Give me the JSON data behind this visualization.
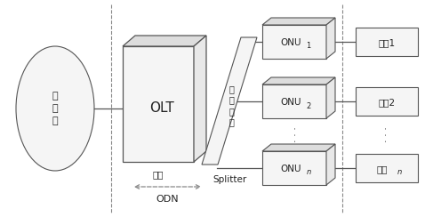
{
  "bg_color": "#ffffff",
  "line_color": "#555555",
  "box_fill": "#f5f5f5",
  "box_top": "#dddddd",
  "box_right": "#e8e8e8",
  "box_edge": "#555555",
  "dashed_color": "#888888",
  "text_color": "#222222",
  "figsize": [
    4.96,
    2.44
  ],
  "dpi": 100,
  "core_net_label": "核\n心\n网",
  "olt_label": "OLT",
  "olt_sub_label": "局端",
  "splitter_label": "光\n分\n路\n器",
  "splitter_sub_label": "Splitter",
  "odn_label": "ODN",
  "user_labels": [
    "用户1",
    "用户2",
    "用户n"
  ],
  "dots_label": "· · ·"
}
